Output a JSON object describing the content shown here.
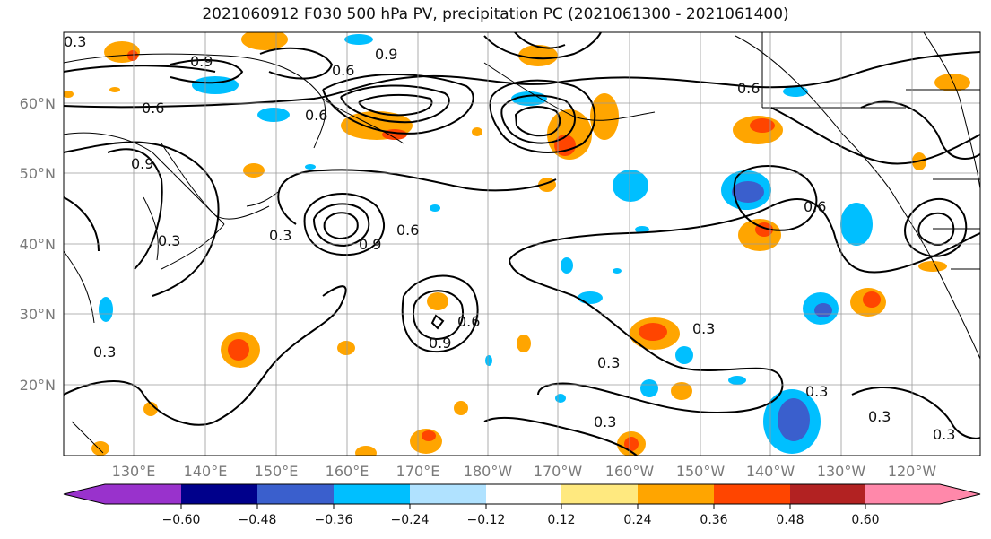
{
  "title": "2021060912 F030 500 hPa PV, precipitation PC (2021061300 - 2021061400)",
  "lat_labels": [
    "60°N",
    "50°N",
    "40°N",
    "30°N",
    "20°N"
  ],
  "lon_labels": [
    "130°E",
    "140°E",
    "150°E",
    "160°E",
    "170°E",
    "180°W",
    "170°W",
    "160°W",
    "150°W",
    "140°W",
    "130°W",
    "120°W"
  ],
  "contour_labels": [
    "0.9",
    "0.6",
    "0.9",
    "0.6",
    "0.6",
    "0.9",
    "0.3",
    "0.3",
    "0.6",
    "0.9",
    "0.3",
    "0.3",
    "0.3",
    "0.3",
    "0.3",
    "0.6",
    "0.9",
    "0.3",
    "0.6",
    "0.3",
    "0.3",
    "0.6"
  ],
  "colorbar": {
    "ticks": [
      "−0.60",
      "−0.48",
      "−0.36",
      "−0.24",
      "−0.12",
      "0.12",
      "0.24",
      "0.36",
      "0.48",
      "0.60"
    ],
    "colors": [
      "#9932cc",
      "#00008b",
      "#3a5fcd",
      "#00bfff",
      "#b0e2ff",
      "#ffffff",
      "#ffe97f",
      "#ffa500",
      "#ff4500",
      "#b22222",
      "#ff88aa"
    ]
  }
}
